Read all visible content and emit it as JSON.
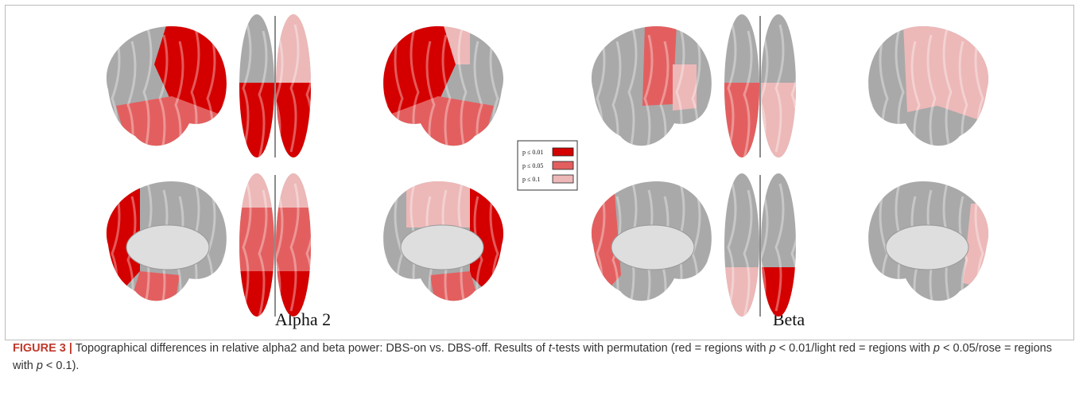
{
  "panels": [
    {
      "label": "Alpha 2"
    },
    {
      "label": "Beta"
    }
  ],
  "legend": {
    "items": [
      {
        "label": "p ≤ 0.01",
        "color": "#d40000"
      },
      {
        "label": "p ≤ 0.05",
        "color": "#e35f5f"
      },
      {
        "label": "p ≤ 0.1",
        "color": "#edb8b8"
      }
    ]
  },
  "caption": {
    "label": "FIGURE 3 |",
    "parts": [
      " Topographical differences in relative alpha2 and beta power: DBS-on vs. DBS-off. Results of ",
      "t",
      "-tests with permutation (red = regions with ",
      "p",
      " < 0.01/light red = regions with ",
      "p",
      " < 0.05/rose = regions with ",
      "p",
      " < 0.1)."
    ]
  }
}
